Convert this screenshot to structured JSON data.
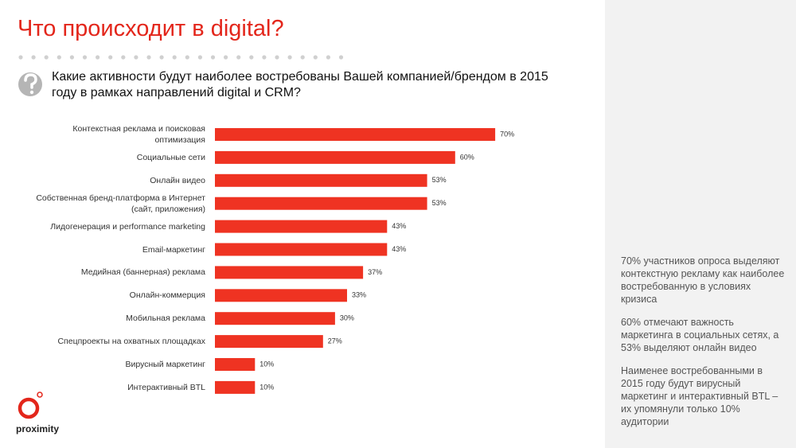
{
  "header": {
    "title": "Что происходит в digital?",
    "question": "Какие активности будут наиболее востребованы Вашей компанией/брендом в 2015 году в рамках направлений digital и CRM?"
  },
  "chart_data": {
    "type": "hbar",
    "categories": [
      "Контекстная реклама и поисковая\nоптимизация",
      "Социальные сети",
      "Онлайн видео",
      "Собственная бренд-платформа в Интернет\n(сайт, приложения)",
      "Лидогенерация и performance marketing",
      "Email-маркетинг",
      "Медийная (баннерная) реклама",
      "Онлайн-коммерция",
      "Мобильная реклама",
      "Спецпроекты на охватных площадках",
      "Вирусный маркетинг",
      "Интерактивный BTL"
    ],
    "values": [
      70,
      60,
      53,
      53,
      43,
      43,
      37,
      33,
      30,
      27,
      10,
      10
    ],
    "value_labels": [
      "70%",
      "60%",
      "53%",
      "53%",
      "43%",
      "43%",
      "37%",
      "33%",
      "30%",
      "27%",
      "10%",
      "10%"
    ],
    "color": "#ef3322",
    "xlim": [
      0,
      100
    ]
  },
  "sidebar": {
    "paragraphs": [
      "70% участников опроса выделяют контекстную рекламу как наиболее востребованную в условиях кризиса",
      "60% отмечают важность маркетинга в социальных сетях, а 53% выделяют онлайн видео",
      "Наименее востребованными в 2015 году будут вирусный маркетинг и интерактивный BTL – их упомянули только 10% аудитории"
    ]
  },
  "logo": "proximity"
}
